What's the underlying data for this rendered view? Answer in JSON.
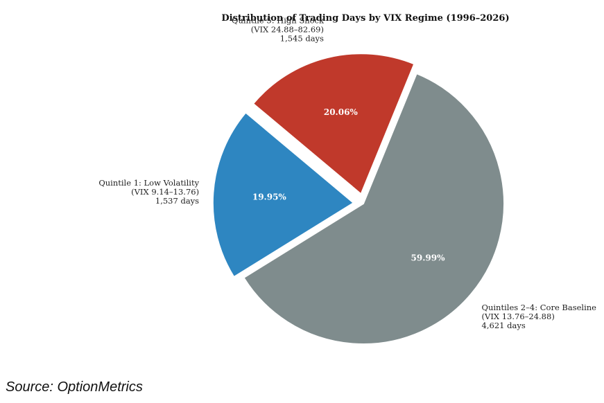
{
  "chart_data": {
    "type": "pie",
    "title": "Distribution of Trading Days by VIX Regime (1996–2026)",
    "slices": [
      {
        "name": "Quintile 1: Low Volatility",
        "range": "(VIX 9.14–13.76)",
        "days_label": "1,537 days",
        "days": 1537,
        "percent": 19.95,
        "percent_label": "19.95%",
        "color": "#2e86c1",
        "exploded": true
      },
      {
        "name": "Quintiles 2–4: Core Baseline",
        "range": "(VIX 13.76–24.88)",
        "days_label": "4,621 days",
        "days": 4621,
        "percent": 59.99,
        "percent_label": "59.99%",
        "color": "#7f8c8d",
        "exploded": false
      },
      {
        "name": "Quintile 5: High Shock",
        "range": "(VIX 24.88–82.69)",
        "days_label": "1,545 days",
        "days": 1545,
        "percent": 20.06,
        "percent_label": "20.06%",
        "color": "#c0392b",
        "exploded": true
      }
    ]
  },
  "source": "Source: OptionMetrics"
}
